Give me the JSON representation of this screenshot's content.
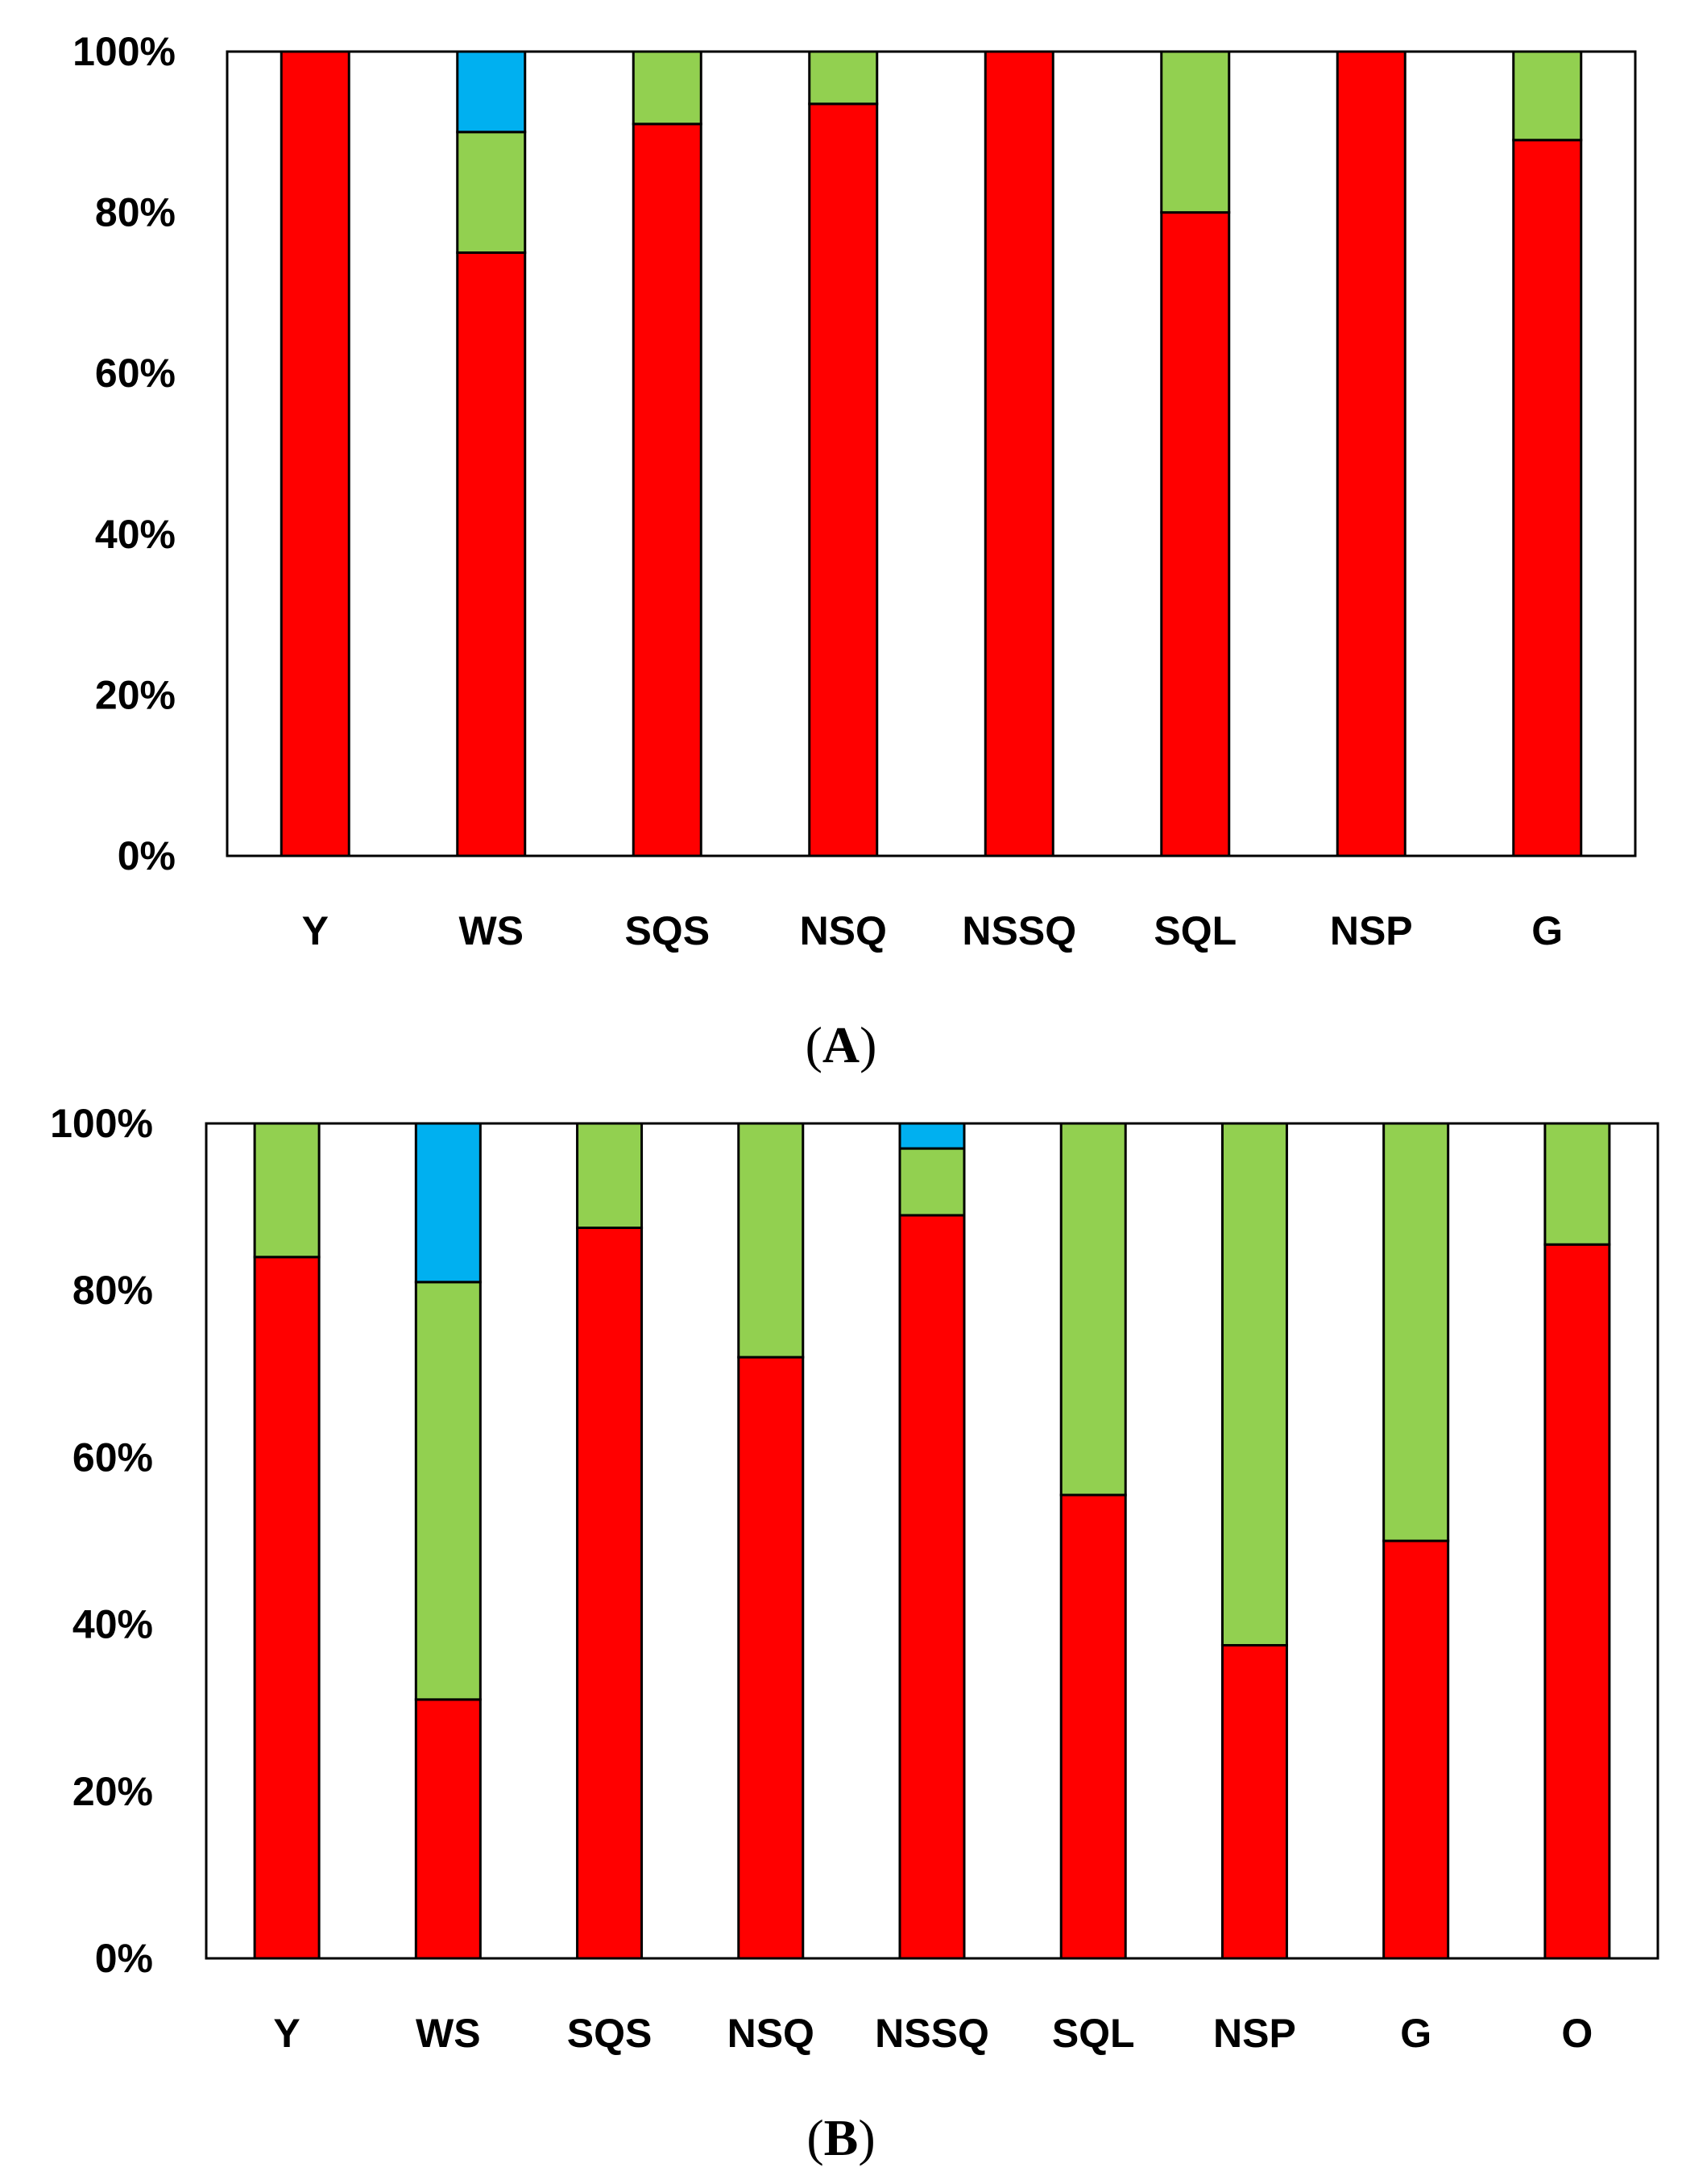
{
  "colors": {
    "red": "#ff0000",
    "green": "#92d050",
    "blue": "#00b0f0"
  },
  "chart_data": [
    {
      "type": "bar",
      "stacked": true,
      "panel_label": {
        "open": "(",
        "letter": "A",
        "close": ")"
      },
      "categories": [
        "Y",
        "WS",
        "SQS",
        "NSQ",
        "NSSQ",
        "SQL",
        "NSP",
        "G"
      ],
      "y_ticks": [
        "0%",
        "20%",
        "40%",
        "60%",
        "80%",
        "100%"
      ],
      "ylim": [
        0,
        100
      ],
      "series": [
        {
          "name": "red",
          "values": [
            100,
            75,
            91,
            93.5,
            100,
            80,
            100,
            89
          ]
        },
        {
          "name": "green",
          "values": [
            0,
            15,
            9,
            6.5,
            0,
            20,
            0,
            11
          ]
        },
        {
          "name": "blue",
          "values": [
            0,
            10,
            0,
            0,
            0,
            0,
            0,
            0
          ]
        }
      ]
    },
    {
      "type": "bar",
      "stacked": true,
      "panel_label": {
        "open": "(",
        "letter": "B",
        "close": ")"
      },
      "categories": [
        "Y",
        "WS",
        "SQS",
        "NSQ",
        "NSSQ",
        "SQL",
        "NSP",
        "G",
        "O"
      ],
      "y_ticks": [
        "0%",
        "20%",
        "40%",
        "60%",
        "80%",
        "100%"
      ],
      "ylim": [
        0,
        100
      ],
      "series": [
        {
          "name": "red",
          "values": [
            84,
            31,
            87.5,
            72,
            89,
            55.5,
            37.5,
            50,
            85.5
          ]
        },
        {
          "name": "green",
          "values": [
            16,
            50,
            12.5,
            28,
            8,
            44.5,
            62.5,
            50,
            14.5
          ]
        },
        {
          "name": "blue",
          "values": [
            0,
            19,
            0,
            0,
            3,
            0,
            0,
            0,
            0
          ]
        }
      ]
    }
  ]
}
